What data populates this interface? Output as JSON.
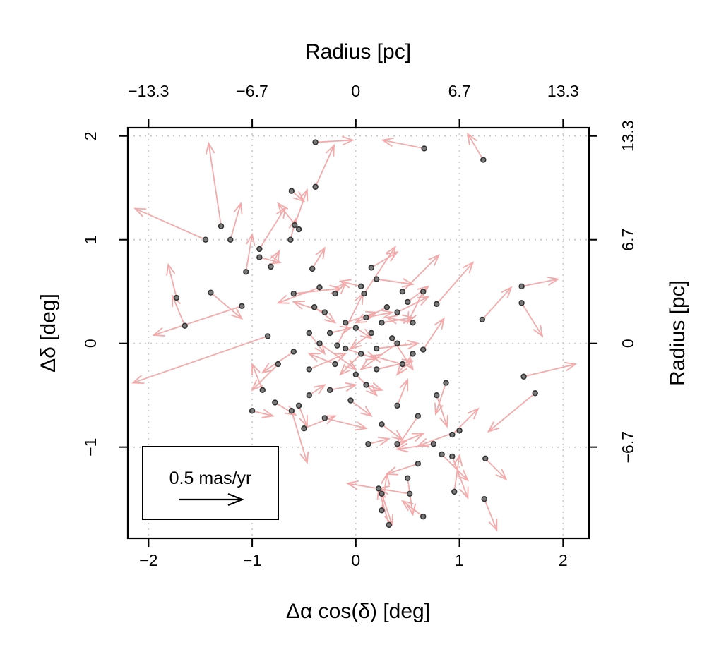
{
  "chart_data": {
    "type": "scatter",
    "title": "",
    "xlabel": "Δα cos(δ) [deg]",
    "ylabel": "Δδ [deg]",
    "top_axis_label": "Radius [pc]",
    "right_axis_label": "Radius [pc]",
    "xlim": [
      -2.2,
      2.25
    ],
    "ylim": [
      -1.88,
      2.08
    ],
    "x_ticks": [
      "−2",
      "−1",
      "0",
      "1",
      "2"
    ],
    "y_ticks": [
      "−1",
      "0",
      "1",
      "2"
    ],
    "top_ticks": [
      "−13.3",
      "−6.7",
      "0",
      "6.7",
      "13.3"
    ],
    "right_ticks": [
      "−6.7",
      "0",
      "6.7",
      "13.3"
    ],
    "grid": true,
    "point_color": "#333333",
    "arrow_color": "#f4aaaa",
    "legend": {
      "label": "0.5 mas/yr",
      "placement": "bottom-left",
      "arrow_length": "0.5 mas/yr"
    },
    "stars": [
      [
        -0.39,
        1.94,
        0.36,
        0.02
      ],
      [
        0.66,
        1.88,
        -0.4,
        0.08
      ],
      [
        1.23,
        1.77,
        -0.15,
        0.25
      ],
      [
        -0.39,
        1.51,
        0.18,
        0.4
      ],
      [
        -0.62,
        1.47,
        0.12,
        -0.1
      ],
      [
        -1.3,
        1.13,
        -0.12,
        0.8
      ],
      [
        -1.45,
        1.0,
        -0.68,
        0.3
      ],
      [
        -1.21,
        1.0,
        0.1,
        0.35
      ],
      [
        -0.59,
        1.14,
        0.12,
        0.34
      ],
      [
        -0.55,
        1.1,
        -0.2,
        0.25
      ],
      [
        -0.63,
        1.0,
        0.05,
        0.2
      ],
      [
        -0.93,
        0.91,
        0.25,
        0.4
      ],
      [
        -0.93,
        0.83,
        0.2,
        -0.05
      ],
      [
        -1.06,
        0.69,
        0.06,
        0.36
      ],
      [
        -0.82,
        0.74,
        0.08,
        0.15
      ],
      [
        -0.42,
        0.72,
        0.12,
        0.2
      ],
      [
        -1.73,
        0.44,
        -0.08,
        0.32
      ],
      [
        -1.65,
        0.17,
        -0.12,
        0.29
      ],
      [
        -1.4,
        0.49,
        0.3,
        -0.25
      ],
      [
        -1.1,
        0.36,
        -0.85,
        -0.28
      ],
      [
        -0.85,
        0.07,
        -1.3,
        -0.45
      ],
      [
        -0.6,
        0.48,
        0.45,
        0.05
      ],
      [
        0.15,
        0.73,
        0.25,
        0.15
      ],
      [
        -0.35,
        0.54,
        -0.4,
        -0.15
      ],
      [
        -0.2,
        0.48,
        0.1,
        0.1
      ],
      [
        0.05,
        0.55,
        -0.2,
        0.05
      ],
      [
        0.2,
        0.62,
        0.35,
        -0.05
      ],
      [
        0.45,
        0.5,
        0.35,
        0.35
      ],
      [
        0.5,
        0.4,
        0.2,
        0.15
      ],
      [
        -0.4,
        0.35,
        0.2,
        -0.15
      ],
      [
        -0.3,
        0.3,
        -0.3,
        0.1
      ],
      [
        -0.1,
        0.2,
        0.3,
        0.1
      ],
      [
        0.1,
        0.25,
        0.25,
        0.05
      ],
      [
        0.3,
        0.35,
        -0.3,
        -0.15
      ],
      [
        0.4,
        0.3,
        0.3,
        0.15
      ],
      [
        0.55,
        0.2,
        -0.25,
        0.05
      ],
      [
        -0.45,
        0.1,
        0.15,
        -0.2
      ],
      [
        -0.25,
        0.1,
        0.2,
        0.05
      ],
      [
        0.0,
        0.15,
        0.15,
        -0.1
      ],
      [
        0.15,
        0.1,
        -0.2,
        -0.15
      ],
      [
        0.25,
        0.2,
        0.3,
        0.05
      ],
      [
        0.4,
        0.0,
        -0.35,
        -0.25
      ],
      [
        -0.6,
        -0.08,
        -0.3,
        -0.2
      ],
      [
        -0.35,
        0.0,
        0.35,
        -0.25
      ],
      [
        -0.1,
        -0.05,
        0.3,
        -0.1
      ],
      [
        0.05,
        -0.1,
        -0.2,
        -0.2
      ],
      [
        0.2,
        -0.05,
        0.4,
        0.05
      ],
      [
        0.35,
        0.05,
        0.2,
        -0.3
      ],
      [
        0.55,
        -0.1,
        -0.15,
        -0.2
      ],
      [
        -0.75,
        -0.2,
        -0.25,
        -0.25
      ],
      [
        -0.45,
        -0.25,
        0.35,
        0.15
      ],
      [
        -0.2,
        -0.2,
        -0.25,
        0.1
      ],
      [
        0.0,
        -0.3,
        0.2,
        -0.2
      ],
      [
        0.2,
        -0.25,
        0.35,
        0.08
      ],
      [
        0.45,
        -0.2,
        -0.3,
        0.08
      ],
      [
        -0.9,
        -0.45,
        -0.1,
        0.25
      ],
      [
        -0.78,
        -0.57,
        0.2,
        -0.12
      ],
      [
        -0.55,
        -0.6,
        0.08,
        -0.2
      ],
      [
        -0.45,
        -0.5,
        0.15,
        0.1
      ],
      [
        -0.25,
        -0.45,
        0.25,
        0.05
      ],
      [
        -0.05,
        -0.55,
        0.2,
        -0.15
      ],
      [
        0.1,
        -0.4,
        0.15,
        -0.05
      ],
      [
        0.4,
        -0.6,
        0.1,
        0.25
      ],
      [
        -1.0,
        -0.65,
        0.2,
        -0.05
      ],
      [
        -0.5,
        -0.82,
        0.3,
        0.12
      ],
      [
        -0.3,
        -0.72,
        0.4,
        -0.1
      ],
      [
        0.25,
        -0.78,
        0.2,
        -0.15
      ],
      [
        0.6,
        -0.7,
        -0.2,
        -0.3
      ],
      [
        0.12,
        -0.97,
        0.2,
        0.05
      ],
      [
        0.4,
        -0.97,
        0.25,
        0.1
      ],
      [
        0.78,
        -0.5,
        0.1,
        -0.3
      ],
      [
        0.87,
        -0.38,
        -0.1,
        -0.3
      ],
      [
        1.0,
        -0.84,
        -0.4,
        -0.15
      ],
      [
        0.93,
        -0.88,
        0.25,
        0.25
      ],
      [
        0.75,
        -0.97,
        -0.35,
        -0.05
      ],
      [
        0.83,
        -1.07,
        0.25,
        -0.25
      ],
      [
        0.93,
        -1.09,
        0.15,
        -0.4
      ],
      [
        1.25,
        -1.11,
        0.2,
        -0.2
      ],
      [
        0.6,
        -1.16,
        -0.3,
        -0.1
      ],
      [
        0.5,
        -1.3,
        0.05,
        -0.35
      ],
      [
        0.22,
        -1.4,
        -0.3,
        0.05
      ],
      [
        0.25,
        -1.45,
        0.1,
        -0.3
      ],
      [
        0.52,
        -1.45,
        -0.3,
        0.05
      ],
      [
        0.25,
        -1.61,
        0.05,
        0.35
      ],
      [
        0.32,
        -1.75,
        -0.1,
        0.35
      ],
      [
        0.65,
        -1.67,
        -0.2,
        0.15
      ],
      [
        0.95,
        -1.43,
        0.05,
        0.35
      ],
      [
        1.24,
        -1.5,
        0.12,
        -0.3
      ],
      [
        1.73,
        -0.48,
        -0.45,
        -0.37
      ],
      [
        1.62,
        -0.32,
        0.5,
        0.12
      ],
      [
        1.6,
        0.55,
        0.35,
        0.07
      ],
      [
        1.6,
        0.39,
        0.2,
        -0.32
      ],
      [
        1.22,
        0.23,
        0.28,
        0.31
      ],
      [
        0.65,
        0.5,
        -0.15,
        -0.3
      ],
      [
        0.78,
        0.38,
        0.35,
        0.4
      ],
      [
        0.65,
        -0.06,
        0.2,
        0.3
      ],
      [
        -0.18,
        -0.02,
        0.25,
        0.5
      ],
      [
        0.08,
        0.48,
        0.3,
        0.45
      ],
      [
        -0.62,
        -0.65,
        0.15,
        -0.5
      ]
    ]
  }
}
